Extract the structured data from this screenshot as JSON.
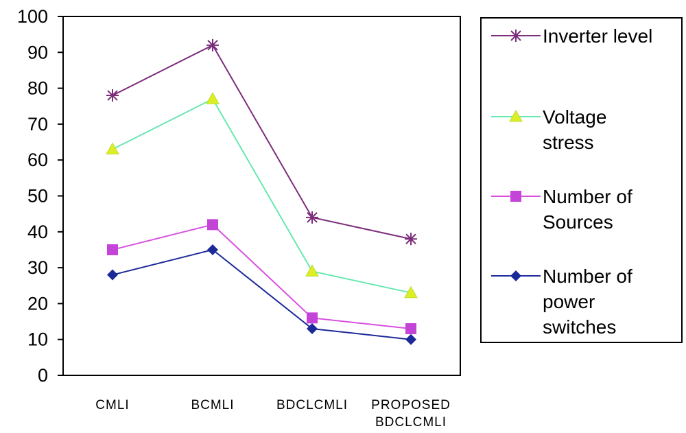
{
  "chart_data": {
    "type": "line",
    "categories": [
      "CMLI",
      "BCMLI",
      "BDCLCMLI",
      "PROPOSED BDCLCMLI"
    ],
    "category_lines": [
      [
        "CMLI"
      ],
      [
        "BCMLI"
      ],
      [
        "BDCLCMLI"
      ],
      [
        "PROPOSED",
        "BDCLCMLI"
      ]
    ],
    "ylim": [
      0,
      100
    ],
    "yticks": [
      0,
      10,
      20,
      30,
      40,
      50,
      60,
      70,
      80,
      90,
      100
    ],
    "grid": false,
    "legend_position": "right",
    "series": [
      {
        "name": "Inverter level",
        "name_lines": [
          "Inverter level"
        ],
        "color": "#7B2D7B",
        "marker": "asterisk",
        "values": [
          78,
          92,
          44,
          38
        ]
      },
      {
        "name": "Voltage stress",
        "name_lines": [
          "Voltage",
          "stress"
        ],
        "color": "#66E8B0",
        "marker": "triangle",
        "marker_color": "#DDEE22",
        "values": [
          63,
          77,
          29,
          23
        ]
      },
      {
        "name": "Number of Sources",
        "name_lines": [
          "Number of",
          "Sources"
        ],
        "color": "#D84FE0",
        "marker": "square",
        "marker_color": "#C444D8",
        "values": [
          35,
          42,
          16,
          13
        ]
      },
      {
        "name": "Number of power switches",
        "name_lines": [
          "Number of",
          "power",
          "switches"
        ],
        "color": "#1C2A99",
        "marker": "diamond",
        "marker_color": "#1C2A99",
        "values": [
          28,
          35,
          13,
          10
        ]
      }
    ]
  }
}
